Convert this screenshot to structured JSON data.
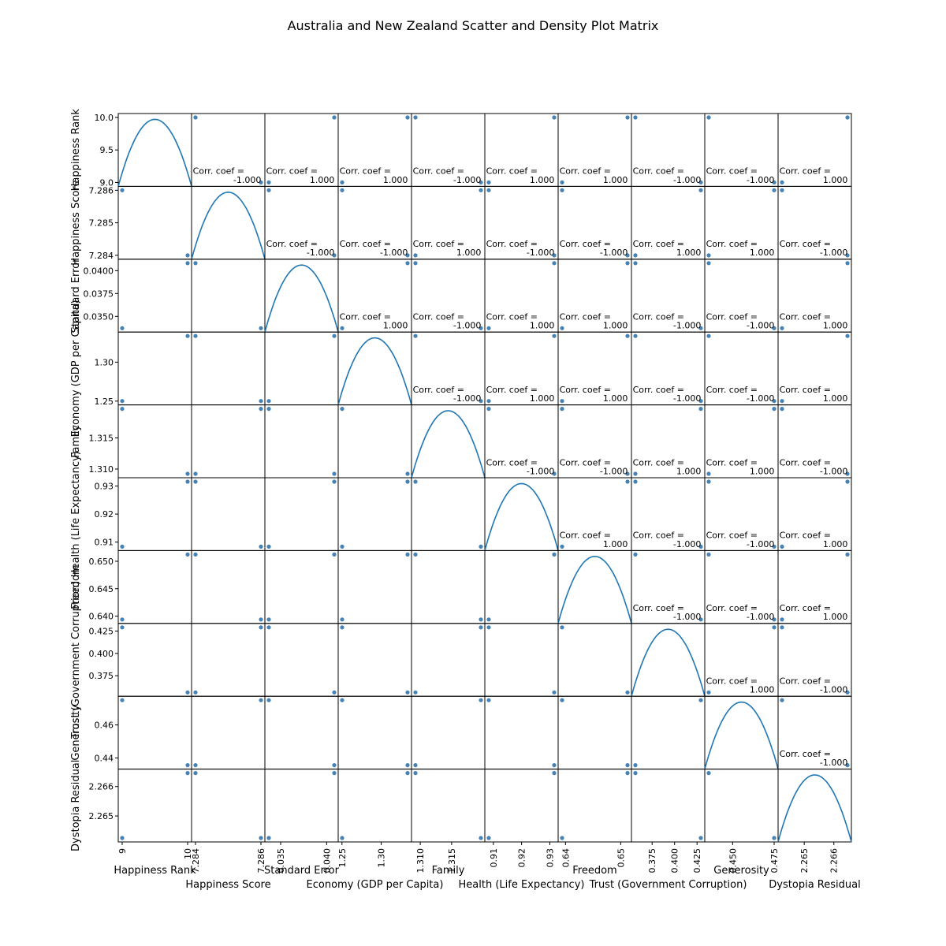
{
  "title": "Australia and New Zealand Scatter and Density Plot Matrix",
  "chart_data": {
    "type": "scatter",
    "variables": [
      "Happiness Rank",
      "Happiness Score",
      "Standard Error",
      "Economy (GDP per Capita)",
      "Family",
      "Health (Life Expectancy)",
      "Freedom",
      "Trust (Government Corruption)",
      "Generosity",
      "Dystopia Residual"
    ],
    "countries": [
      "Australia",
      "New Zealand"
    ],
    "values": {
      "Happiness Rank": [
        10,
        9
      ],
      "Happiness Score": [
        7.284,
        7.286
      ],
      "Standard Error": [
        0.04083,
        0.03371
      ],
      "Economy (GDP per Capita)": [
        1.33358,
        1.25018
      ],
      "Family": [
        1.30923,
        1.31967
      ],
      "Health (Life Expectancy)": [
        0.93156,
        0.90837
      ],
      "Freedom": [
        0.65124,
        0.63938
      ],
      "Trust (Government Corruption)": [
        0.35637,
        0.42922
      ],
      "Generosity": [
        0.43562,
        0.47501
      ],
      "Dystopia Residual": [
        2.26646,
        2.26425
      ]
    },
    "axis_ticks": [
      [
        "9",
        "10"
      ],
      [
        "7.284",
        "7.286"
      ],
      [
        "0.035",
        "0.040"
      ],
      [
        "1.25",
        "1.30"
      ],
      [
        "1.310",
        "1.315"
      ],
      [
        "0.91",
        "0.92",
        "0.93"
      ],
      [
        "0.64",
        "0.65"
      ],
      [
        "0.375",
        "0.400",
        "0.425"
      ],
      [
        "0.450",
        "0.475"
      ],
      [
        "2.265",
        "2.266"
      ]
    ],
    "y_axis_ticks": [
      [
        "9.0",
        "9.5",
        "10.0"
      ],
      [
        "7.284",
        "7.285",
        "7.286"
      ],
      [
        "0.0350",
        "0.0375",
        "0.0400"
      ],
      [
        "1.25",
        "1.30"
      ],
      [
        "1.310",
        "1.315"
      ],
      [
        "0.91",
        "0.92",
        "0.93"
      ],
      [
        "0.640",
        "0.645",
        "0.650"
      ],
      [
        "0.375",
        "0.400",
        "0.425"
      ],
      [
        "0.44",
        "0.46"
      ],
      [
        "2.265",
        "2.266"
      ]
    ],
    "x_axis_ticks": [
      [
        "9",
        "10"
      ],
      [
        "7.284",
        "7.286"
      ],
      [
        "0.035",
        "0.040"
      ],
      [
        "1.25",
        "1.30"
      ],
      [
        "1.310",
        "1.315"
      ],
      [
        "0.91",
        "0.92",
        "0.93"
      ],
      [
        "0.64",
        "0.65"
      ],
      [
        "0.375",
        "0.400",
        "0.425"
      ],
      [
        "0.450",
        "0.475"
      ],
      [
        "2.265",
        "2.266"
      ]
    ],
    "corr_label": "Corr. coef =",
    "correlations": [
      [
        null,
        "-1.000",
        "1.000",
        "1.000",
        "-1.000",
        "1.000",
        "1.000",
        "-1.000",
        "-1.000",
        "1.000"
      ],
      [
        null,
        null,
        "-1.000",
        "-1.000",
        "1.000",
        "-1.000",
        "-1.000",
        "1.000",
        "1.000",
        "-1.000"
      ],
      [
        null,
        null,
        null,
        "1.000",
        "-1.000",
        "1.000",
        "1.000",
        "-1.000",
        "-1.000",
        "1.000"
      ],
      [
        null,
        null,
        null,
        null,
        "-1.000",
        "1.000",
        "1.000",
        "-1.000",
        "-1.000",
        "1.000"
      ],
      [
        null,
        null,
        null,
        null,
        null,
        "-1.000",
        "-1.000",
        "1.000",
        "1.000",
        "-1.000"
      ],
      [
        null,
        null,
        null,
        null,
        null,
        null,
        "1.000",
        "-1.000",
        "-1.000",
        "1.000"
      ],
      [
        null,
        null,
        null,
        null,
        null,
        null,
        null,
        "-1.000",
        "-1.000",
        "1.000"
      ],
      [
        null,
        null,
        null,
        null,
        null,
        null,
        null,
        null,
        "1.000",
        "-1.000"
      ],
      [
        null,
        null,
        null,
        null,
        null,
        null,
        null,
        null,
        null,
        "-1.000"
      ],
      [
        null,
        null,
        null,
        null,
        null,
        null,
        null,
        null,
        null,
        null
      ]
    ],
    "colors": {
      "density": "#1f77b4",
      "points": "#4682b4"
    },
    "grid": false
  }
}
